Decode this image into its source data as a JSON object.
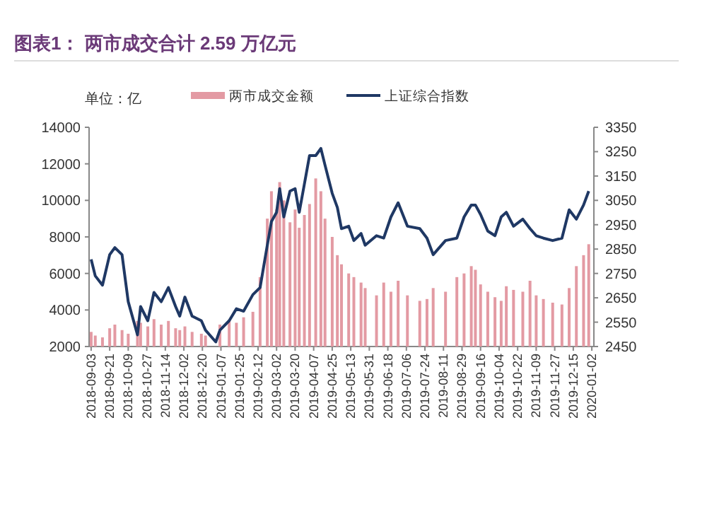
{
  "chart_data": {
    "type": "bar",
    "title": "图表1： 两市成交合计 2.59 万亿元",
    "ylabel": "单位：亿",
    "legend": "top",
    "x": [
      "2018-09-03",
      "2018-09-07",
      "2018-09-14",
      "2018-09-21",
      "2018-09-26",
      "2018-10-03",
      "2018-10-09",
      "2018-10-18",
      "2018-10-21",
      "2018-10-28",
      "2018-11-03",
      "2018-11-10",
      "2018-11-17",
      "2018-11-24",
      "2018-11-28",
      "2018-12-03",
      "2018-12-10",
      "2018-12-19",
      "2018-12-23",
      "2019-01-02",
      "2019-01-06",
      "2019-01-15",
      "2019-01-22",
      "2019-01-29",
      "2019-02-07",
      "2019-02-14",
      "2019-02-21",
      "2019-02-25",
      "2019-03-02",
      "2019-03-05",
      "2019-03-09",
      "2019-03-15",
      "2019-03-20",
      "2019-03-24",
      "2019-03-29",
      "2019-04-03",
      "2019-04-09",
      "2019-04-14",
      "2019-04-18",
      "2019-04-25",
      "2019-04-30",
      "2019-05-04",
      "2019-05-11",
      "2019-05-16",
      "2019-05-23",
      "2019-05-27",
      "2019-06-07",
      "2019-06-14",
      "2019-06-21",
      "2019-06-28",
      "2019-07-07",
      "2019-07-19",
      "2019-07-26",
      "2019-08-01",
      "2019-08-13",
      "2019-08-24",
      "2019-08-31",
      "2019-09-07",
      "2019-09-11",
      "2019-09-16",
      "2019-09-23",
      "2019-09-30",
      "2019-10-06",
      "2019-10-11",
      "2019-10-18",
      "2019-10-27",
      "2019-11-03",
      "2019-11-09",
      "2019-11-16",
      "2019-11-25",
      "2019-12-04",
      "2019-12-11",
      "2019-12-18",
      "2019-12-25",
      "2019-12-30"
    ],
    "xlim": [
      "2018-09-01",
      "2020-01-04"
    ],
    "xticks": [
      "2018-09-03",
      "2018-09-21",
      "2018-10-09",
      "2018-10-27",
      "2018-11-14",
      "2018-12-02",
      "2018-12-20",
      "2019-01-07",
      "2019-01-25",
      "2019-02-12",
      "2019-03-02",
      "2019-03-20",
      "2019-04-07",
      "2019-04-25",
      "2019-05-13",
      "2019-05-31",
      "2019-06-18",
      "2019-07-06",
      "2019-07-24",
      "2019-08-11",
      "2019-08-29",
      "2019-09-16",
      "2019-10-04",
      "2019-10-22",
      "2019-11-09",
      "2019-11-27",
      "2019-12-15",
      "2020-01-02"
    ],
    "ylim": [
      2000,
      14000
    ],
    "yticks": [
      2000,
      4000,
      6000,
      8000,
      10000,
      12000,
      14000
    ],
    "y2lim": [
      2450,
      3350
    ],
    "y2ticks": [
      2450,
      2550,
      2650,
      2750,
      2850,
      2950,
      3050,
      3150,
      3250,
      3350
    ],
    "series": [
      {
        "name": "两市成交金额",
        "color": "#e39aa3",
        "values": [
          2800,
          2600,
          2500,
          3000,
          3200,
          2900,
          2700,
          3400,
          3300,
          3100,
          3500,
          3200,
          3400,
          3000,
          2900,
          3100,
          2800,
          2700,
          2600,
          null,
          3200,
          3400,
          3300,
          3600,
          3900,
          5800,
          9000,
          10500,
          9500,
          11000,
          10000,
          8800,
          9500,
          8500,
          9200,
          9800,
          11200,
          10500,
          9000,
          8000,
          7000,
          6500,
          6000,
          5800,
          5500,
          5200,
          4800,
          5500,
          5000,
          5600,
          4800,
          4500,
          4600,
          5200,
          5000,
          5800,
          6000,
          6400,
          6200,
          5400,
          5000,
          4700,
          4500,
          5300,
          5100,
          5000,
          5600,
          4800,
          4600,
          4400,
          4300,
          5200,
          6400,
          7000,
          7600
        ]
      },
      {
        "name": "上证综合指数",
        "type": "line",
        "axis": "y2",
        "color": "#1f3864",
        "values": [
          2808,
          2740,
          2702,
          2827,
          2856,
          2827,
          2634,
          2498,
          2614,
          2556,
          2672,
          2634,
          2692,
          2614,
          2575,
          2653,
          2575,
          2556,
          2517,
          2469,
          2517,
          2556,
          2605,
          2595,
          2663,
          2692,
          2866,
          2963,
          3001,
          3098,
          2982,
          3088,
          3098,
          3001,
          3117,
          3234,
          3234,
          3263,
          3195,
          3079,
          3021,
          2934,
          2944,
          2885,
          2914,
          2866,
          2905,
          2895,
          2982,
          3040,
          2944,
          2934,
          2895,
          2827,
          2885,
          2895,
          2982,
          3031,
          3031,
          2992,
          2924,
          2905,
          2982,
          3001,
          2944,
          2973,
          2934,
          2905,
          2895,
          2885,
          2895,
          3011,
          2973,
          3031,
          3088
        ]
      }
    ]
  }
}
